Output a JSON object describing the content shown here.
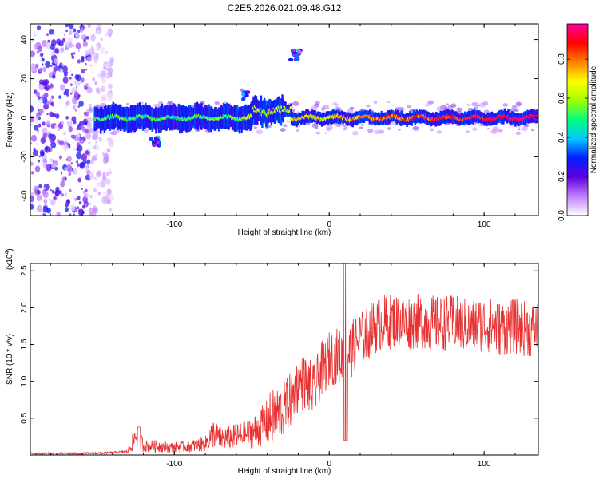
{
  "title": "C2E5.2026.021.09.48.G12",
  "chart_data": [
    {
      "type": "heatmap",
      "xlabel": "Height of straight line (km)",
      "ylabel": "Frequency (Hz)",
      "xlim": [
        -193,
        135
      ],
      "ylim": [
        -50,
        48
      ],
      "xticks": [
        -100,
        0,
        100
      ],
      "xtick_labels": [
        "-100",
        "0",
        "100"
      ],
      "yticks": [
        -40,
        -20,
        0,
        20,
        40
      ],
      "ytick_labels": [
        "-40",
        "-20",
        "0",
        "20",
        "40"
      ],
      "colorbar": {
        "label": "Normalized spectral amplitude",
        "range": [
          0,
          0.98
        ],
        "ticks": [
          0,
          0.2,
          0.4,
          0.6,
          0.8
        ],
        "tick_labels": [
          "0.0",
          "0.2",
          "0.4",
          "0.6",
          "0.8"
        ],
        "colors": [
          "#ffffff",
          "#c080ff",
          "#6000e0",
          "#0020ff",
          "#00c8ff",
          "#00ff80",
          "#a0ff00",
          "#ffff00",
          "#ff8000",
          "#ff0000",
          "#ff00a0"
        ]
      },
      "signal": {
        "center_frequency": 0,
        "onset_height": -152,
        "noise_region": [
          -193,
          -140
        ],
        "features": [
          {
            "height": -112,
            "frequency": -12
          },
          {
            "height": -55,
            "frequency": 12
          },
          {
            "height": -22,
            "frequency": 32
          }
        ]
      }
    },
    {
      "type": "line",
      "xlabel": "Height of straight line (km)",
      "ylabel": "SNR (10 * v/v)",
      "multiplier_label": "(x10",
      "multiplier_exp": "4",
      "xlim": [
        -193,
        135
      ],
      "ylim": [
        0,
        2.6
      ],
      "xticks": [
        -100,
        0,
        100
      ],
      "xtick_labels": [
        "-100",
        "0",
        "100"
      ],
      "yticks": [
        0.5,
        1.0,
        1.5,
        2.0,
        2.5
      ],
      "ytick_labels": [
        "0.5",
        "1.0",
        "1.5",
        "2.0",
        "2.5"
      ],
      "color": "#e83030",
      "series": [
        {
          "name": "SNR",
          "x": [
            -193,
            -160,
            -140,
            -130,
            -124,
            -120,
            -110,
            -100,
            -90,
            -80,
            -75,
            -70,
            -60,
            -50,
            -40,
            -35,
            -30,
            -25,
            -20,
            -15,
            -10,
            -5,
            0,
            5,
            10,
            15,
            20,
            25,
            30,
            35,
            40,
            50,
            60,
            70,
            80,
            90,
            100,
            110,
            120,
            130,
            135
          ],
          "y": [
            0.02,
            0.02,
            0.03,
            0.05,
            0.3,
            0.12,
            0.12,
            0.1,
            0.12,
            0.15,
            0.3,
            0.22,
            0.25,
            0.3,
            0.45,
            0.55,
            0.6,
            0.75,
            0.95,
            1.0,
            0.85,
            1.15,
            1.3,
            1.35,
            1.3,
            1.45,
            1.6,
            1.65,
            1.75,
            1.8,
            1.82,
            1.8,
            1.82,
            1.78,
            1.8,
            1.75,
            1.78,
            1.72,
            1.75,
            1.7,
            1.72
          ]
        }
      ]
    }
  ]
}
